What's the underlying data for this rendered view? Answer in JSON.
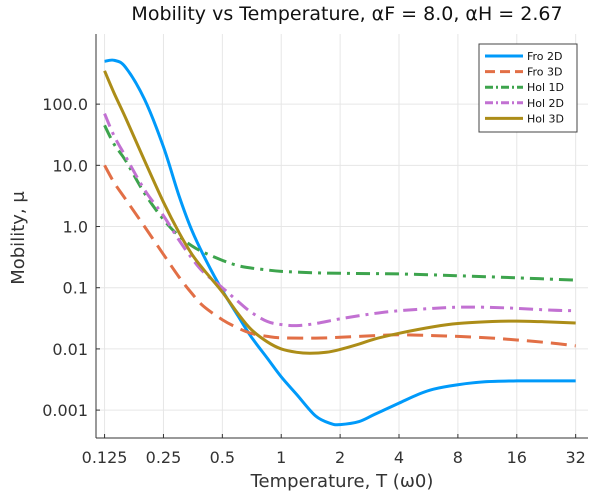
{
  "chart_data": {
    "type": "line",
    "title": "Mobility vs Temperature, αF = 8.0, αH = 2.67",
    "xlabel": "Temperature, T (ω0)",
    "ylabel": "Mobility, μ",
    "xscale": "log2",
    "yscale": "log10",
    "xlim": [
      0.113,
      37
    ],
    "ylim": [
      0.00035,
      1400
    ],
    "xticks": [
      {
        "value": 0.125,
        "label": "0.125"
      },
      {
        "value": 0.25,
        "label": "0.25"
      },
      {
        "value": 0.5,
        "label": "0.5"
      },
      {
        "value": 1,
        "label": "1"
      },
      {
        "value": 2,
        "label": "2"
      },
      {
        "value": 4,
        "label": "4"
      },
      {
        "value": 8,
        "label": "8"
      },
      {
        "value": 16,
        "label": "16"
      },
      {
        "value": 32,
        "label": "32"
      }
    ],
    "yticks": [
      {
        "value": 0.001,
        "label": "0.001"
      },
      {
        "value": 0.01,
        "label": "0.01"
      },
      {
        "value": 0.1,
        "label": "0.1"
      },
      {
        "value": 1,
        "label": "1.0"
      },
      {
        "value": 10,
        "label": "10.0"
      },
      {
        "value": 100,
        "label": "100.0"
      }
    ],
    "grid": true,
    "legend_position": "top-right",
    "series": [
      {
        "name": "Fro 2D",
        "color": "#009AFA",
        "dash": "solid",
        "points": [
          [
            0.125,
            500
          ],
          [
            0.14,
            520
          ],
          [
            0.16,
            400
          ],
          [
            0.2,
            120
          ],
          [
            0.25,
            20
          ],
          [
            0.3,
            3.2
          ],
          [
            0.35,
            0.85
          ],
          [
            0.42,
            0.25
          ],
          [
            0.5,
            0.09
          ],
          [
            0.6,
            0.035
          ],
          [
            0.7,
            0.016
          ],
          [
            0.85,
            0.007
          ],
          [
            1,
            0.0035
          ],
          [
            1.2,
            0.0018
          ],
          [
            1.5,
            0.0008
          ],
          [
            1.8,
            0.0006
          ],
          [
            2,
            0.00058
          ],
          [
            2.5,
            0.00065
          ],
          [
            3,
            0.00085
          ],
          [
            4,
            0.0013
          ],
          [
            5,
            0.0018
          ],
          [
            6,
            0.0022
          ],
          [
            8,
            0.0026
          ],
          [
            11,
            0.0029
          ],
          [
            16,
            0.003
          ],
          [
            22,
            0.003
          ],
          [
            32,
            0.003
          ]
        ]
      },
      {
        "name": "Fro 3D",
        "color": "#E26F46",
        "dash": "long-dash",
        "points": [
          [
            0.125,
            10
          ],
          [
            0.14,
            5.2
          ],
          [
            0.16,
            2.8
          ],
          [
            0.2,
            1
          ],
          [
            0.25,
            0.35
          ],
          [
            0.3,
            0.15
          ],
          [
            0.35,
            0.08
          ],
          [
            0.4,
            0.05
          ],
          [
            0.5,
            0.03
          ],
          [
            0.6,
            0.022
          ],
          [
            0.7,
            0.018
          ],
          [
            0.85,
            0.016
          ],
          [
            1,
            0.0152
          ],
          [
            1.5,
            0.015
          ],
          [
            2,
            0.0155
          ],
          [
            3,
            0.0165
          ],
          [
            4,
            0.017
          ],
          [
            6,
            0.0165
          ],
          [
            8,
            0.016
          ],
          [
            12,
            0.015
          ],
          [
            16,
            0.014
          ],
          [
            24,
            0.0125
          ],
          [
            32,
            0.0112
          ]
        ]
      },
      {
        "name": "Hol 1D",
        "color": "#3DA44D",
        "dash": "dash-dot",
        "points": [
          [
            0.125,
            45
          ],
          [
            0.14,
            22
          ],
          [
            0.16,
            12
          ],
          [
            0.2,
            3.5
          ],
          [
            0.25,
            1.3
          ],
          [
            0.3,
            0.7
          ],
          [
            0.35,
            0.48
          ],
          [
            0.4,
            0.38
          ],
          [
            0.5,
            0.28
          ],
          [
            0.6,
            0.23
          ],
          [
            0.7,
            0.21
          ],
          [
            0.85,
            0.195
          ],
          [
            1,
            0.185
          ],
          [
            1.5,
            0.175
          ],
          [
            2,
            0.172
          ],
          [
            3,
            0.17
          ],
          [
            4,
            0.168
          ],
          [
            6,
            0.162
          ],
          [
            8,
            0.157
          ],
          [
            16,
            0.145
          ],
          [
            32,
            0.133
          ]
        ]
      },
      {
        "name": "Hol 2D",
        "color": "#C271D2",
        "dash": "dash-dot",
        "points": [
          [
            0.125,
            70
          ],
          [
            0.14,
            30
          ],
          [
            0.16,
            14
          ],
          [
            0.2,
            4
          ],
          [
            0.25,
            1.5
          ],
          [
            0.3,
            0.6
          ],
          [
            0.35,
            0.3
          ],
          [
            0.4,
            0.18
          ],
          [
            0.5,
            0.1
          ],
          [
            0.6,
            0.06
          ],
          [
            0.7,
            0.04
          ],
          [
            0.85,
            0.028
          ],
          [
            1,
            0.025
          ],
          [
            1.2,
            0.024
          ],
          [
            1.5,
            0.026
          ],
          [
            2,
            0.031
          ],
          [
            3,
            0.038
          ],
          [
            4,
            0.042
          ],
          [
            6,
            0.046
          ],
          [
            8,
            0.048
          ],
          [
            11,
            0.048
          ],
          [
            16,
            0.046
          ],
          [
            24,
            0.043
          ],
          [
            32,
            0.042
          ]
        ]
      },
      {
        "name": "Hol 3D",
        "color": "#AC8D18",
        "dash": "solid",
        "points": [
          [
            0.125,
            350
          ],
          [
            0.14,
            150
          ],
          [
            0.16,
            60
          ],
          [
            0.2,
            12
          ],
          [
            0.25,
            2.5
          ],
          [
            0.3,
            0.8
          ],
          [
            0.35,
            0.35
          ],
          [
            0.4,
            0.2
          ],
          [
            0.5,
            0.085
          ],
          [
            0.6,
            0.038
          ],
          [
            0.7,
            0.021
          ],
          [
            0.85,
            0.013
          ],
          [
            1,
            0.01
          ],
          [
            1.2,
            0.0088
          ],
          [
            1.4,
            0.0085
          ],
          [
            1.7,
            0.0088
          ],
          [
            2,
            0.0098
          ],
          [
            2.5,
            0.012
          ],
          [
            3,
            0.0145
          ],
          [
            4,
            0.018
          ],
          [
            6,
            0.023
          ],
          [
            8,
            0.026
          ],
          [
            12,
            0.028
          ],
          [
            16,
            0.0285
          ],
          [
            22,
            0.0278
          ],
          [
            32,
            0.0265
          ]
        ]
      }
    ]
  }
}
